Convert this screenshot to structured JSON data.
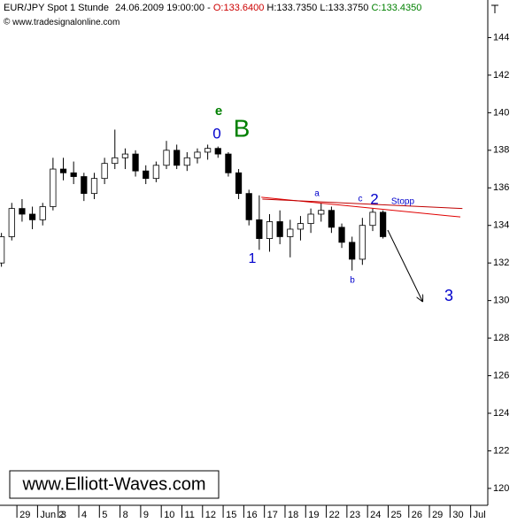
{
  "chart_data": {
    "type": "candlestick",
    "header": {
      "instrument": "EUR/JPY Spot 1 Stunde",
      "timestamp": "24.06.2009 19:00:00",
      "separator": "-",
      "open": "O:133.6400",
      "high": "H:133.7350",
      "low": "L:133.3750",
      "close": "C:133.4350"
    },
    "subtitle": "www.tradesignalonline.com",
    "watermark": "www.Elliott-Waves.com",
    "annotations": [
      "e",
      "0",
      "B",
      "1",
      "a",
      "c",
      "2",
      "Stopp",
      "b",
      "3"
    ],
    "annotation_colors": [
      "#008000",
      "#0000cc",
      "#008000",
      "#0000cc",
      "#0000cc",
      "#0000cc",
      "#0000cc",
      "#0000cc",
      "#0000cc",
      "#0000cc"
    ],
    "x": [
      -0.75,
      -0.25,
      0.25,
      0.75,
      1.25,
      1.75,
      2.25,
      2.75,
      3.25,
      3.75,
      4.25,
      4.75,
      5.25,
      5.75,
      6.25,
      6.75,
      7.25,
      7.75,
      8.25,
      8.75,
      9.25,
      9.75,
      10.25,
      10.75,
      11.25,
      11.75,
      12.25,
      12.75,
      13.25,
      13.75,
      14.25,
      14.75,
      15.25,
      15.75,
      16.25,
      16.75,
      17.25,
      17.75
    ],
    "open": [
      132.0,
      133.4,
      134.9,
      134.6,
      134.3,
      135.0,
      137.0,
      136.8,
      136.6,
      135.7,
      136.5,
      137.3,
      137.6,
      137.8,
      136.9,
      136.5,
      137.2,
      138.0,
      137.2,
      137.6,
      137.9,
      138.1,
      137.8,
      136.8,
      135.7,
      134.3,
      133.3,
      134.2,
      133.4,
      133.8,
      134.1,
      134.6,
      134.8,
      133.9,
      133.1,
      132.2,
      134.0,
      134.7
    ],
    "high": [
      133.6,
      135.2,
      135.4,
      135.0,
      135.2,
      137.6,
      137.6,
      137.4,
      136.8,
      136.8,
      137.6,
      139.1,
      138.1,
      138.0,
      137.2,
      137.4,
      138.5,
      138.3,
      137.9,
      138.1,
      138.3,
      138.2,
      137.9,
      137.0,
      135.9,
      135.6,
      134.6,
      134.8,
      134.3,
      134.5,
      134.9,
      135.2,
      135.0,
      134.1,
      133.4,
      134.4,
      134.9,
      134.8
    ],
    "low": [
      131.8,
      133.2,
      134.2,
      133.8,
      134.0,
      134.8,
      136.4,
      136.2,
      135.3,
      135.4,
      136.2,
      137.0,
      137.0,
      136.6,
      136.2,
      136.3,
      137.0,
      137.0,
      136.9,
      137.3,
      137.5,
      137.6,
      136.6,
      135.4,
      134.0,
      132.7,
      132.6,
      133.0,
      132.3,
      133.2,
      133.6,
      134.2,
      133.6,
      132.8,
      131.6,
      131.9,
      133.7,
      133.3
    ],
    "close": [
      133.4,
      134.9,
      134.6,
      134.3,
      135.0,
      137.0,
      136.8,
      136.6,
      135.7,
      136.5,
      137.3,
      137.6,
      137.8,
      136.9,
      136.5,
      137.2,
      138.0,
      137.2,
      137.6,
      137.9,
      138.1,
      137.8,
      136.8,
      135.7,
      134.3,
      133.3,
      134.2,
      133.4,
      133.8,
      134.1,
      134.6,
      134.8,
      133.9,
      133.1,
      132.2,
      134.0,
      134.7,
      133.4
    ],
    "up_color": "#ffffff",
    "down_color": "#000000",
    "trendlines": [
      {
        "x": [
          11.85,
          21.5
        ],
        "y": [
          135.5,
          134.45
        ],
        "color": "#e00000"
      },
      {
        "x": [
          11.9,
          21.6
        ],
        "y": [
          135.4,
          134.9
        ],
        "color": "#c00000"
      },
      {
        "x": [
          17.98,
          19.66
        ],
        "y": [
          133.75,
          129.97
        ],
        "color": "#000000",
        "arrow": true
      }
    ],
    "xlim": [
      -0.82,
      22.83
    ],
    "ylim": [
      119.1,
      146.0
    ],
    "xticks": [
      {
        "value": 0,
        "label": "29"
      },
      {
        "value": 1,
        "label": "Jun 2"
      },
      {
        "value": 2,
        "label": "3"
      },
      {
        "value": 3,
        "label": "4"
      },
      {
        "value": 4,
        "label": "5"
      },
      {
        "value": 5,
        "label": "8"
      },
      {
        "value": 6,
        "label": "9"
      },
      {
        "value": 7,
        "label": "10"
      },
      {
        "value": 8,
        "label": "11"
      },
      {
        "value": 9,
        "label": "12"
      },
      {
        "value": 10,
        "label": "15"
      },
      {
        "value": 11,
        "label": "16"
      },
      {
        "value": 12,
        "label": "17"
      },
      {
        "value": 13,
        "label": "18"
      },
      {
        "value": 14,
        "label": "19"
      },
      {
        "value": 15,
        "label": "22"
      },
      {
        "value": 16,
        "label": "23"
      },
      {
        "value": 17,
        "label": "24"
      },
      {
        "value": 18,
        "label": "25"
      },
      {
        "value": 19,
        "label": "26"
      },
      {
        "value": 20,
        "label": "29"
      },
      {
        "value": 21,
        "label": "30"
      },
      {
        "value": 22,
        "label": "Jul"
      }
    ],
    "yticks": [
      120,
      122,
      124,
      126,
      128,
      130,
      132,
      134,
      136,
      138,
      140,
      142,
      144
    ],
    "grid": false
  }
}
